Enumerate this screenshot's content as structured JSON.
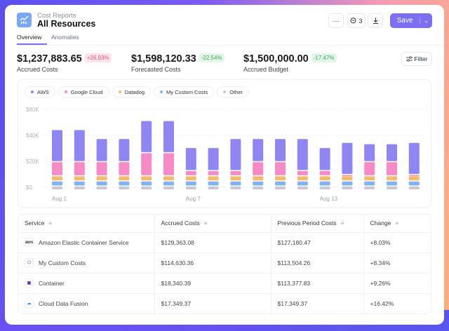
{
  "header": {
    "breadcrumb": "Cost Reports",
    "title": "All Resources",
    "more_label": "···",
    "comments_count": "3",
    "save_label": "Save"
  },
  "tabs": [
    {
      "label": "Overview",
      "active": true
    },
    {
      "label": "Anomalies",
      "active": false
    }
  ],
  "stats": [
    {
      "value": "$1,237,883.65",
      "change": "+26.93%",
      "label": "Accrued Costs",
      "tone": "red"
    },
    {
      "value": "$1,598,120.33",
      "change": "-22.54%",
      "label": "Forecasted Costs",
      "tone": "green"
    },
    {
      "value": "$1,500,000.00",
      "change": "-17.47%",
      "label": "Accrued Budget",
      "tone": "green"
    }
  ],
  "filter_label": "Filter",
  "chart_data": {
    "type": "bar",
    "stacked": true,
    "categories": [
      "Aug 1",
      "Aug 2",
      "Aug 3",
      "Aug 4",
      "Aug 5",
      "Aug 6",
      "Aug 7",
      "Aug 8",
      "Aug 9",
      "Aug 10",
      "Aug 11",
      "Aug 12",
      "Aug 13",
      "Aug 14",
      "Aug 15",
      "Aug 16",
      "Aug 17"
    ],
    "xtick_labels": [
      "Aug 1",
      "Aug 7",
      "Aug 13"
    ],
    "ytick_labels": [
      "$0",
      "$20K",
      "$40K",
      "$80K"
    ],
    "grid": true,
    "legend": "top-left",
    "series": [
      {
        "name": "Other",
        "color": "#c8c9cf",
        "values": [
          3,
          3,
          3,
          3,
          3,
          3,
          3,
          3,
          3,
          3,
          3,
          3,
          3,
          3,
          3,
          3,
          3
        ]
      },
      {
        "name": "My Custom Costs",
        "color": "#7fb2f7",
        "values": [
          4,
          4,
          4,
          4,
          4,
          4,
          4,
          4,
          4,
          4,
          4,
          4,
          4,
          4,
          4,
          4,
          4
        ]
      },
      {
        "name": "Datadog",
        "color": "#f6bb6a",
        "values": [
          4,
          4,
          4,
          4,
          4,
          4,
          4,
          4,
          4,
          4,
          4,
          4,
          4,
          4,
          4,
          4,
          4
        ]
      },
      {
        "name": "Google Cloud",
        "color": "#f78ac6",
        "values": [
          11,
          11,
          11,
          11,
          18,
          18,
          4,
          4,
          4,
          11,
          11,
          4,
          4,
          1,
          11,
          11,
          1
        ]
      },
      {
        "name": "AWS",
        "color": "#8f85f3",
        "values": [
          25,
          25,
          18,
          18,
          25,
          25,
          18,
          18,
          25,
          18,
          18,
          25,
          18,
          25,
          14,
          14,
          25
        ]
      }
    ],
    "legend_order": [
      "AWS",
      "Google Cloud",
      "Datadog",
      "My Custom Costs",
      "Other"
    ],
    "legend_colors": [
      "#8f85f3",
      "#f78ac6",
      "#f6bb6a",
      "#7fb2f7",
      "#c8c9cf"
    ],
    "unit": "thousands USD"
  },
  "table": {
    "columns": [
      "Service",
      "Accrued Costs",
      "Previous Period Costs",
      "Change"
    ],
    "rows": [
      {
        "service": "Amazon Elastic Container Service",
        "icon": "aws-icon",
        "accrued": "$129,363.08",
        "previous": "$127,180.47",
        "change": "+8.03%"
      },
      {
        "service": "My Custom Costs",
        "icon": "custom-costs-icon",
        "accrued": "$114,630.36",
        "previous": "$113,504.26",
        "change": "+8.34%"
      },
      {
        "service": "Container",
        "icon": "container-icon",
        "accrued": "$18,340.39",
        "previous": "$113,377.83",
        "change": "+9.26%"
      },
      {
        "service": "Cloud Data Fusion",
        "icon": "google-cloud-icon",
        "accrued": "$17,349.37",
        "previous": "$17,349.37",
        "change": "+16.42%"
      }
    ]
  }
}
